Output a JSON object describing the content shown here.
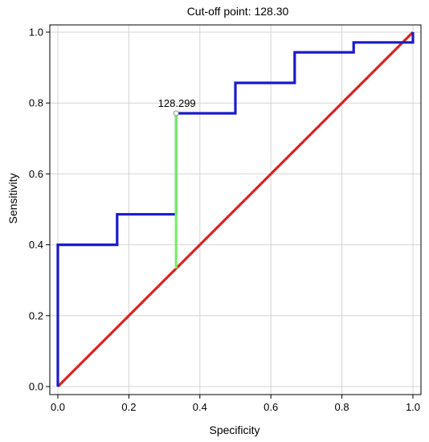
{
  "chart_data": {
    "type": "line",
    "title": "Cut-off point: 128.30",
    "xlabel": "Specificity",
    "ylabel": "Sensitivity",
    "xlim": [
      0.0,
      1.0
    ],
    "ylim": [
      0.0,
      1.0
    ],
    "x_ticks": [
      "0.0",
      "0.2",
      "0.4",
      "0.6",
      "0.8",
      "1.0"
    ],
    "y_ticks": [
      "0.0",
      "0.2",
      "0.4",
      "0.6",
      "0.8",
      "1.0"
    ],
    "grid": true,
    "legend": "none",
    "series": [
      {
        "color": "#1a1acc",
        "x": [
          0.0,
          0.0,
          0.167,
          0.167,
          0.333,
          0.333,
          0.5,
          0.5,
          0.667,
          0.667,
          0.833,
          0.833,
          1.0,
          1.0
        ],
        "y": [
          0.0,
          0.4,
          0.4,
          0.486,
          0.486,
          0.771,
          0.771,
          0.857,
          0.857,
          0.943,
          0.943,
          0.971,
          0.971,
          1.0
        ]
      },
      {
        "color": "#e02020",
        "x": [
          0.0,
          1.0
        ],
        "y": [
          0.0,
          1.0
        ]
      }
    ],
    "cutoff_line": {
      "color": "#77ee66",
      "x": 0.333,
      "y_from": 0.333,
      "y_to": 0.771
    },
    "annotation": {
      "text": "128.299",
      "x": 0.333,
      "y": 0.771
    }
  }
}
